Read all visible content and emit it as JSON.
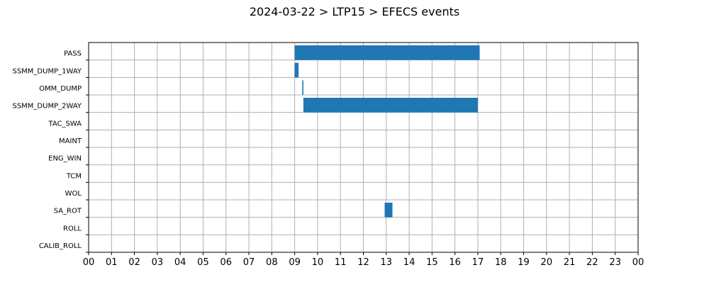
{
  "chart_data": {
    "type": "bar",
    "orientation": "horizontal-timeline",
    "title": "2024-03-22 > LTP15 > EFECS events",
    "xlabel": "",
    "ylabel": "",
    "xlim": [
      0,
      24
    ],
    "xtick_labels": [
      "00",
      "01",
      "02",
      "03",
      "04",
      "05",
      "06",
      "07",
      "08",
      "09",
      "10",
      "11",
      "12",
      "13",
      "14",
      "15",
      "16",
      "17",
      "18",
      "19",
      "20",
      "21",
      "22",
      "23",
      "00"
    ],
    "grid": true,
    "categories": [
      "PASS",
      "SSMM_DUMP_1WAY",
      "OMM_DUMP",
      "SSMM_DUMP_2WAY",
      "TAC_SWA",
      "MAINT",
      "ENG_WIN",
      "TCM",
      "WOL",
      "SA_ROT",
      "ROLL",
      "CALIB_ROLL"
    ],
    "series": [
      {
        "color": "#1f77b4",
        "bars": [
          {
            "category": "PASS",
            "start": 9.0,
            "end": 17.08
          },
          {
            "category": "SSMM_DUMP_1WAY",
            "start": 9.0,
            "end": 9.17
          },
          {
            "category": "OMM_DUMP",
            "start": 9.33,
            "end": 9.38
          },
          {
            "category": "SSMM_DUMP_2WAY",
            "start": 9.38,
            "end": 17.0
          },
          {
            "category": "SA_ROT",
            "start": 12.93,
            "end": 13.27
          }
        ]
      }
    ]
  }
}
